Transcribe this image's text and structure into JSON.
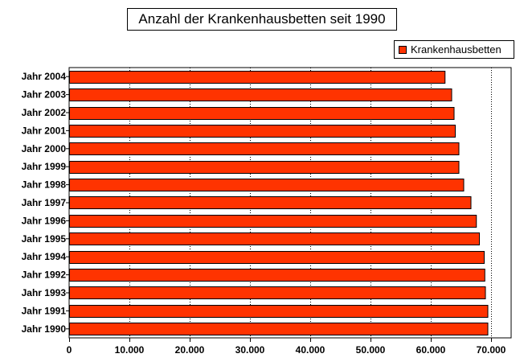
{
  "chart_data": {
    "type": "bar",
    "orientation": "horizontal",
    "title": "Anzahl der Krankenhausbetten seit 1990",
    "categories": [
      "Jahr 2004",
      "Jahr 2003",
      "Jahr 2002",
      "Jahr 2001",
      "Jahr 2000",
      "Jahr 1999",
      "Jahr 1998",
      "Jahr 1997",
      "Jahr 1996",
      "Jahr 1995",
      "Jahr 1994",
      "Jahr 1992",
      "Jahr 1993",
      "Jahr 1991",
      "Jahr 1990"
    ],
    "series": [
      {
        "name": "Krankenhausbetten",
        "color": "#ff3300",
        "values": [
          62300,
          63400,
          63800,
          64000,
          64600,
          64600,
          65400,
          66600,
          67500,
          68000,
          68800,
          68900,
          69000,
          69400,
          69400
        ]
      }
    ],
    "xlim": [
      0,
      70000
    ],
    "xticks": [
      "0",
      "10.000",
      "20.000",
      "30.000",
      "40.000",
      "50.000",
      "60.000",
      "70.000"
    ],
    "grid": "vertical-dotted",
    "legend_position": "top-right"
  }
}
